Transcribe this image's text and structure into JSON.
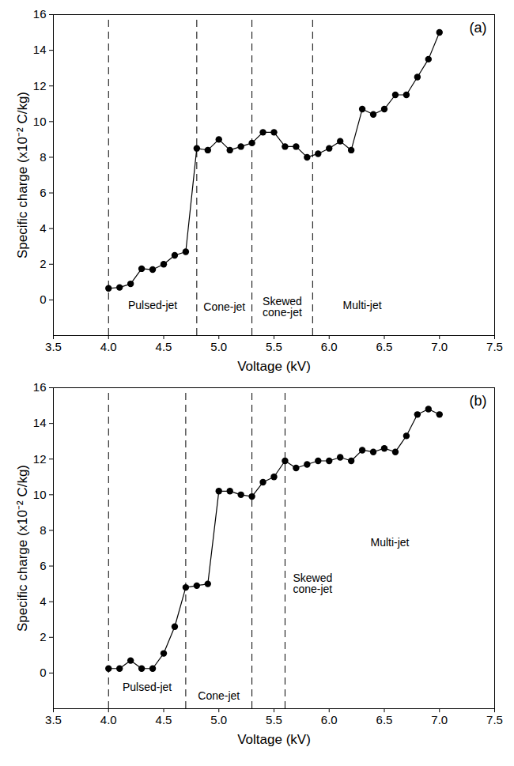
{
  "chart_data": [
    {
      "type": "line",
      "title": "(a)",
      "xlabel": "Voltage (kV)",
      "ylabel": "Specific charge (x10⁻² C/kg)",
      "x": [
        4.0,
        4.1,
        4.2,
        4.3,
        4.4,
        4.5,
        4.6,
        4.7,
        4.8,
        4.9,
        5.0,
        5.1,
        5.2,
        5.3,
        5.4,
        5.5,
        5.6,
        5.7,
        5.8,
        5.9,
        6.0,
        6.1,
        6.2,
        6.3,
        6.4,
        6.5,
        6.6,
        6.7,
        6.8,
        6.9,
        7.0
      ],
      "values": [
        0.65,
        0.7,
        0.9,
        1.75,
        1.7,
        2.0,
        2.5,
        2.7,
        8.5,
        8.4,
        9.0,
        8.4,
        8.6,
        8.8,
        9.4,
        9.4,
        8.6,
        8.6,
        8.0,
        8.2,
        8.5,
        8.9,
        8.4,
        10.7,
        10.4,
        10.7,
        11.5,
        11.5,
        12.5,
        13.5,
        15.0
      ],
      "color": "#000000",
      "marker": "circle",
      "line_style": "solid",
      "grid": false,
      "xlim": [
        3.5,
        7.5
      ],
      "xticks": [
        {
          "value": 3.5,
          "label": "3.5"
        },
        {
          "value": 4.0,
          "label": "4.0"
        },
        {
          "value": 4.5,
          "label": "4.5"
        },
        {
          "value": 5.0,
          "label": "5.0"
        },
        {
          "value": 5.5,
          "label": "5.5"
        },
        {
          "value": 6.0,
          "label": "6.0"
        },
        {
          "value": 6.5,
          "label": "6.5"
        },
        {
          "value": 7.0,
          "label": "7.0"
        },
        {
          "value": 7.5,
          "label": "7.5"
        }
      ],
      "ylim": [
        -2,
        16
      ],
      "yticks": [
        0,
        2,
        4,
        6,
        8,
        10,
        12,
        14,
        16
      ],
      "regime_boundaries": [
        4.0,
        4.8,
        5.3,
        5.85
      ],
      "annotations": [
        {
          "text": "Pulsed-jet",
          "x": 4.4,
          "y": -0.3
        },
        {
          "text": "Cone-jet",
          "x": 5.05,
          "y": -0.4
        },
        {
          "text": "Skewed cone-jet",
          "x": 5.575,
          "y": -0.4
        },
        {
          "text": "Multi-jet",
          "x": 6.3,
          "y": -0.3
        }
      ]
    },
    {
      "type": "line",
      "title": "(b)",
      "xlabel": "Voltage (kV)",
      "ylabel": "Specific charge (x10⁻² C/kg)",
      "x": [
        4.0,
        4.1,
        4.2,
        4.3,
        4.4,
        4.5,
        4.6,
        4.7,
        4.8,
        4.9,
        5.0,
        5.1,
        5.2,
        5.3,
        5.4,
        5.5,
        5.6,
        5.7,
        5.8,
        5.9,
        6.0,
        6.1,
        6.2,
        6.3,
        6.4,
        6.5,
        6.6,
        6.7,
        6.8,
        6.9,
        7.0
      ],
      "values": [
        0.25,
        0.25,
        0.7,
        0.25,
        0.25,
        1.1,
        2.6,
        4.8,
        4.9,
        5.0,
        10.2,
        10.2,
        10.0,
        9.9,
        10.7,
        11.0,
        11.9,
        11.5,
        11.7,
        11.9,
        11.9,
        12.1,
        11.9,
        12.5,
        12.4,
        12.6,
        12.4,
        13.3,
        14.5,
        14.8,
        14.5
      ],
      "color": "#000000",
      "marker": "circle",
      "line_style": "solid",
      "grid": false,
      "xlim": [
        3.5,
        7.5
      ],
      "xticks": [
        {
          "value": 3.5,
          "label": "3.5"
        },
        {
          "value": 4.0,
          "label": "4.0"
        },
        {
          "value": 4.5,
          "label": "4.5"
        },
        {
          "value": 5.0,
          "label": "5.0"
        },
        {
          "value": 5.5,
          "label": "5.5"
        },
        {
          "value": 6.0,
          "label": "6.0"
        },
        {
          "value": 6.5,
          "label": "6.5"
        },
        {
          "value": 7.0,
          "label": "7.0"
        },
        {
          "value": 7.5,
          "label": "7.5"
        }
      ],
      "ylim": [
        -2,
        16
      ],
      "yticks": [
        0,
        2,
        4,
        6,
        8,
        10,
        12,
        14,
        16
      ],
      "regime_boundaries": [
        4.0,
        4.7,
        5.3,
        5.6
      ],
      "annotations": [
        {
          "text": "Pulsed-jet",
          "x": 4.35,
          "y": -0.8
        },
        {
          "text": "Cone-jet",
          "x": 5.0,
          "y": -1.3
        },
        {
          "text": "Skewed cone-jet",
          "x": 5.85,
          "y": 5.0
        },
        {
          "text": "Multi-jet",
          "x": 6.55,
          "y": 7.3
        }
      ]
    }
  ]
}
